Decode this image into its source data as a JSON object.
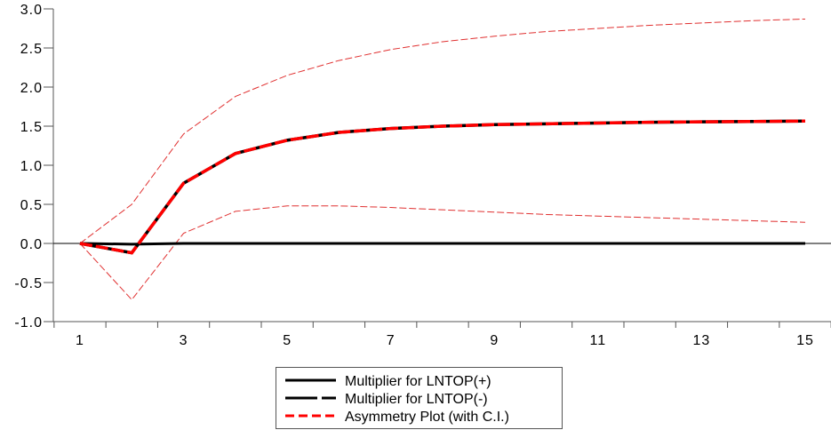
{
  "chart_data": {
    "type": "line",
    "title": "",
    "xlabel": "",
    "ylabel": "",
    "x": [
      1,
      2,
      3,
      4,
      5,
      6,
      7,
      8,
      9,
      10,
      11,
      12,
      13,
      14,
      15
    ],
    "xticks": [
      "1",
      "3",
      "5",
      "7",
      "9",
      "11",
      "13",
      "15"
    ],
    "xtick_values": [
      1,
      3,
      5,
      7,
      9,
      11,
      13,
      15
    ],
    "ylim": [
      -1.0,
      3.0
    ],
    "yticks": [
      "-1.0",
      "-0.5",
      "0.0",
      "0.5",
      "1.0",
      "1.5",
      "2.0",
      "2.5",
      "3.0"
    ],
    "ytick_values": [
      -1.0,
      -0.5,
      0.0,
      0.5,
      1.0,
      1.5,
      2.0,
      2.5,
      3.0
    ],
    "grid": false,
    "legend_position": "bottom-center",
    "series": [
      {
        "name": "Multiplier for LNTOP(+)",
        "style": "solid",
        "color": "#000000",
        "values": [
          0,
          -0.01,
          0,
          0,
          0,
          0,
          0,
          0,
          0,
          0,
          0,
          0,
          0,
          0,
          0
        ]
      },
      {
        "name": "Multiplier for LNTOP(-)",
        "style": "long-dash",
        "color": "#000000",
        "values": [
          0,
          -0.12,
          0.77,
          1.15,
          1.32,
          1.42,
          1.47,
          1.5,
          1.52,
          1.53,
          1.54,
          1.55,
          1.555,
          1.56,
          1.565
        ]
      },
      {
        "name": "Asymmetry Plot (with C.I.)",
        "style": "dash",
        "color": "#ff0000",
        "values": [
          0,
          -0.12,
          0.77,
          1.15,
          1.32,
          1.42,
          1.47,
          1.5,
          1.52,
          1.53,
          1.54,
          1.55,
          1.555,
          1.56,
          1.565
        ],
        "upper": [
          0,
          0.5,
          1.4,
          1.88,
          2.15,
          2.34,
          2.48,
          2.58,
          2.65,
          2.71,
          2.75,
          2.79,
          2.82,
          2.85,
          2.87
        ],
        "lower": [
          0,
          -0.72,
          0.13,
          0.41,
          0.48,
          0.48,
          0.46,
          0.43,
          0.4,
          0.37,
          0.35,
          0.33,
          0.31,
          0.29,
          0.27
        ]
      }
    ]
  }
}
